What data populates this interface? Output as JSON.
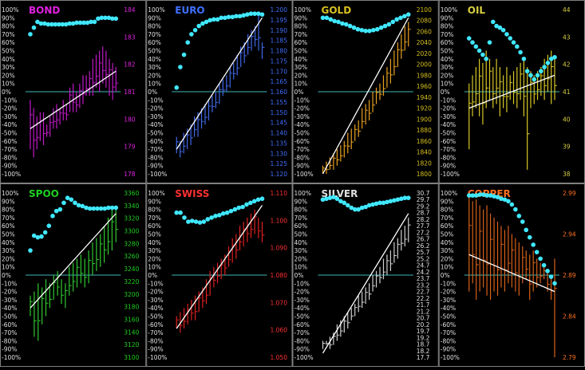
{
  "pct_ticks": [
    "100%",
    "90%",
    "80%",
    "70%",
    "60%",
    "50%",
    "40%",
    "30%",
    "20%",
    "10%",
    "0%",
    "-10%",
    "-20%",
    "-30%",
    "-40%",
    "-50%",
    "-60%",
    "-70%",
    "-80%",
    "-90%",
    "-100%"
  ],
  "colors": {
    "background": "#000000",
    "grid": "#808080",
    "zero_line": "#40b8b8",
    "dots": "#40e8ff",
    "regression": "#ffffff"
  },
  "chart_data": [
    {
      "type": "bar",
      "name": "BOND",
      "title_color": "#e020e0",
      "bar_color": "#c018c8",
      "right_ticks": [
        "184",
        "183",
        "182",
        "181",
        "180",
        "179",
        "178"
      ],
      "ylim": [
        178,
        184
      ],
      "dots": [
        70,
        78,
        85,
        83,
        83,
        82,
        82,
        82,
        82,
        82,
        82,
        83,
        83,
        84,
        84,
        84,
        84,
        85,
        85,
        89,
        90,
        90,
        90,
        89,
        89
      ],
      "highs": [
        -10,
        -20,
        -30,
        -25,
        -25,
        -40,
        -30,
        -20,
        -15,
        -20,
        -10,
        -15,
        5,
        10,
        0,
        10,
        20,
        20,
        25,
        40,
        45,
        50,
        55,
        50,
        40,
        35,
        30
      ],
      "lows": [
        -70,
        -80,
        -70,
        -60,
        -65,
        -55,
        -55,
        -45,
        -45,
        -40,
        -35,
        -35,
        -25,
        -25,
        -25,
        -20,
        -15,
        -5,
        -5,
        -5,
        5,
        0,
        10,
        5,
        -5,
        -10,
        0
      ],
      "regression": [
        -45,
        25
      ]
    },
    {
      "type": "bar",
      "name": "EURO",
      "title_color": "#4070ff",
      "bar_color": "#4068e8",
      "right_ticks": [
        "1.200",
        "1.195",
        "1.190",
        "1.185",
        "1.180",
        "1.175",
        "1.170",
        "1.165",
        "1.160",
        "1.155",
        "1.150",
        "1.145",
        "1.140",
        "1.135",
        "1.130",
        "1.125",
        "1.120"
      ],
      "ylim": [
        1.12,
        1.2
      ],
      "dots": [
        5,
        30,
        45,
        60,
        70,
        75,
        80,
        83,
        85,
        87,
        88,
        88,
        90,
        90,
        91,
        91,
        92,
        92,
        93,
        94,
        95,
        95,
        95,
        94
      ],
      "highs": [
        -55,
        -60,
        -50,
        -45,
        -40,
        -30,
        -25,
        -20,
        -15,
        -10,
        -5,
        0,
        10,
        15,
        20,
        30,
        35,
        45,
        55,
        60,
        70,
        75,
        80,
        95,
        60
      ],
      "lows": [
        -75,
        -80,
        -75,
        -70,
        -65,
        -55,
        -55,
        -45,
        -40,
        -35,
        -25,
        -20,
        -15,
        -5,
        0,
        5,
        15,
        20,
        30,
        35,
        45,
        50,
        55,
        50,
        40
      ],
      "regression": [
        -70,
        90
      ]
    },
    {
      "type": "bar",
      "name": "GOLD",
      "title_color": "#d8c020",
      "bar_color": "#e8a020",
      "right_ticks": [
        "2100",
        "2080",
        "2060",
        "2040",
        "2020",
        "2000",
        "1980",
        "1960",
        "1940",
        "1920",
        "1900",
        "1880",
        "1860",
        "1840",
        "1820",
        "1800"
      ],
      "ylim": [
        1800,
        2100
      ],
      "dots": [
        90,
        90,
        88,
        86,
        85,
        83,
        82,
        80,
        78,
        76,
        75,
        74,
        74,
        75,
        76,
        78,
        80,
        82,
        85,
        88,
        90,
        92,
        94
      ],
      "highs": [
        -90,
        -85,
        -80,
        -75,
        -70,
        -65,
        -60,
        -50,
        -45,
        -40,
        -35,
        -20,
        -15,
        -10,
        0,
        5,
        10,
        20,
        30,
        40,
        50,
        60,
        70,
        80,
        85
      ],
      "lows": [
        -100,
        -100,
        -95,
        -95,
        -90,
        -85,
        -80,
        -75,
        -70,
        -60,
        -55,
        -45,
        -40,
        -35,
        -25,
        -15,
        -10,
        -5,
        5,
        10,
        20,
        30,
        40,
        50,
        55
      ],
      "regression": [
        -100,
        90
      ]
    },
    {
      "type": "bar",
      "name": "OIL",
      "title_color": "#d8d040",
      "bar_color": "#d8c828",
      "right_ticks": [
        "44",
        "43",
        "42",
        "41",
        "40",
        "39",
        "38"
      ],
      "ylim": [
        38,
        44
      ],
      "dots": [
        65,
        60,
        55,
        50,
        45,
        40,
        60,
        85,
        80,
        78,
        75,
        70,
        65,
        60,
        55,
        48,
        40,
        25,
        20,
        15,
        20,
        25,
        30,
        35,
        40,
        42
      ],
      "highs": [
        10,
        20,
        30,
        40,
        35,
        50,
        40,
        30,
        40,
        30,
        20,
        30,
        20,
        25,
        30,
        35,
        40,
        30,
        25,
        20,
        25,
        30,
        40,
        45,
        50,
        40
      ],
      "lows": [
        -70,
        -30,
        -20,
        -30,
        -40,
        -20,
        -10,
        -20,
        -15,
        -30,
        -20,
        -25,
        -10,
        -15,
        -20,
        -10,
        -30,
        -95,
        -20,
        -15,
        -10,
        -5,
        -10,
        0,
        -15,
        -10
      ],
      "regression": [
        -20,
        20
      ]
    },
    {
      "type": "bar",
      "name": "SPOO",
      "title_color": "#20d020",
      "bar_color": "#30c830",
      "right_ticks": [
        "3360",
        "3340",
        "3320",
        "3300",
        "3280",
        "3260",
        "3240",
        "3220",
        "3200",
        "3180",
        "3160",
        "3140",
        "3120",
        "3100"
      ],
      "ylim": [
        3100,
        3360
      ],
      "dots": [
        30,
        48,
        46,
        47,
        52,
        60,
        72,
        78,
        80,
        88,
        94,
        92,
        88,
        85,
        84,
        82,
        81,
        81,
        81,
        81,
        81,
        82,
        82,
        82
      ],
      "highs": [
        -25,
        -20,
        -10,
        -15,
        -5,
        -10,
        0,
        5,
        -5,
        -10,
        10,
        15,
        20,
        25,
        20,
        30,
        40,
        45,
        50,
        60,
        70,
        80,
        85
      ],
      "lows": [
        -50,
        -75,
        -80,
        -60,
        -50,
        -40,
        -30,
        -25,
        -35,
        -40,
        -25,
        -20,
        -15,
        -10,
        -15,
        -10,
        0,
        5,
        10,
        15,
        25,
        30,
        40
      ],
      "regression": [
        -40,
        75
      ]
    },
    {
      "type": "bar",
      "name": "SWISS",
      "title_color": "#ff3030",
      "bar_color": "#e02020",
      "right_ticks": [
        "1.110",
        "1.100",
        "1.090",
        "1.080",
        "1.070",
        "1.060",
        "1.050"
      ],
      "ylim": [
        1.05,
        1.11
      ],
      "dots": [
        76,
        76,
        70,
        65,
        66,
        65,
        64,
        65,
        68,
        70,
        72,
        73,
        75,
        76,
        78,
        80,
        82,
        83,
        86,
        88,
        90,
        92,
        93
      ],
      "highs": [
        -50,
        -45,
        -40,
        -35,
        -30,
        -25,
        -20,
        -15,
        -5,
        5,
        10,
        15,
        20,
        25,
        35,
        45,
        50,
        60,
        65,
        70,
        75,
        80,
        70,
        65
      ],
      "lows": [
        -65,
        -70,
        -65,
        -60,
        -55,
        -55,
        -45,
        -40,
        -35,
        -25,
        -15,
        -10,
        -5,
        0,
        10,
        15,
        20,
        30,
        35,
        40,
        45,
        50,
        45,
        40
      ],
      "regression": [
        -65,
        85
      ]
    },
    {
      "type": "bar",
      "name": "SILVER",
      "title_color": "#e0e0e0",
      "bar_color": "#d0d0d0",
      "right_ticks": [
        "30.7",
        "29.7",
        "29.2",
        "28.7",
        "28.2",
        "27.7",
        "27.2",
        "26.7",
        "26.2",
        "25.7",
        "25.2",
        "24.7",
        "24.2",
        "23.7",
        "23.2",
        "22.7",
        "22.2",
        "21.7",
        "21.2",
        "20.7",
        "20.2",
        "19.7",
        "19.2",
        "18.7",
        "18.2",
        "17.7"
      ],
      "ylim": [
        17.7,
        30.7
      ],
      "dots": [
        92,
        93,
        94,
        95,
        93,
        90,
        88,
        85,
        82,
        80,
        80,
        82,
        83,
        85,
        86,
        87,
        88,
        88,
        89,
        90,
        91,
        92,
        93,
        94,
        94
      ],
      "highs": [
        -80,
        -80,
        -75,
        -70,
        -60,
        -55,
        -50,
        -45,
        -40,
        -35,
        -25,
        -20,
        -15,
        -10,
        0,
        5,
        10,
        20,
        25,
        30,
        40,
        45,
        55,
        60,
        70
      ],
      "lows": [
        -90,
        -85,
        -90,
        -85,
        -80,
        -75,
        -70,
        -65,
        -55,
        -50,
        -45,
        -40,
        -35,
        -30,
        -20,
        -15,
        -10,
        -5,
        0,
        5,
        15,
        20,
        30,
        35,
        40
      ],
      "regression": [
        -95,
        75
      ]
    },
    {
      "type": "bar",
      "name": "COPPER",
      "title_color": "#ff7020",
      "bar_color": "#d86018",
      "right_ticks": [
        "2.99",
        "2.94",
        "2.89",
        "2.84",
        "2.79"
      ],
      "ylim": [
        2.79,
        2.99
      ],
      "dots": [
        97,
        97,
        97,
        98,
        98,
        97,
        97,
        96,
        95,
        93,
        92,
        90,
        86,
        80,
        72,
        65,
        55,
        46,
        37,
        28,
        20,
        12,
        5,
        -2,
        -10
      ],
      "highs": [
        95,
        90,
        92,
        85,
        80,
        85,
        75,
        70,
        65,
        60,
        55,
        60,
        50,
        45,
        40,
        35,
        30,
        25,
        30,
        20,
        15,
        10,
        5,
        0,
        20
      ],
      "lows": [
        -20,
        -10,
        -30,
        -20,
        -15,
        -25,
        -30,
        -20,
        -25,
        -15,
        -20,
        -10,
        -15,
        -20,
        -25,
        -10,
        -5,
        -30,
        -20,
        -15,
        -10,
        -5,
        -20,
        -30,
        -100
      ],
      "regression": [
        25,
        -20
      ]
    }
  ]
}
